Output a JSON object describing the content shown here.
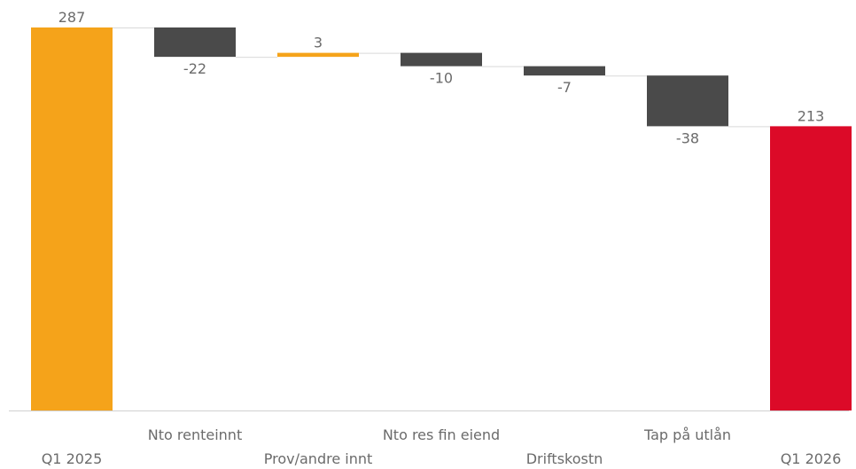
{
  "chart_data": {
    "type": "waterfall",
    "categories": [
      "Q1 2025",
      "Nto renteinnt",
      "Prov/andre innt",
      "Nto res fin eiend",
      "Driftskostn",
      "Tap på utlån",
      "Q1 2026"
    ],
    "values": [
      287,
      -22,
      3,
      -10,
      -7,
      -38,
      213
    ],
    "value_labels": [
      "287",
      "-22",
      "3",
      "-10",
      "-7",
      "-38",
      "213"
    ],
    "kinds": [
      "total",
      "delta",
      "delta",
      "delta",
      "delta",
      "delta",
      "total"
    ],
    "ylim": [
      0,
      300
    ],
    "colors": {
      "start_total": "#F5A31A",
      "increase": "#F5A31A",
      "decrease": "#4A4A4A",
      "end_total": "#DC0A28",
      "connector": "#d9d9d9",
      "axis": "#d0d0d0",
      "label": "#6b6b6b"
    },
    "grid": false,
    "legend": "none"
  }
}
